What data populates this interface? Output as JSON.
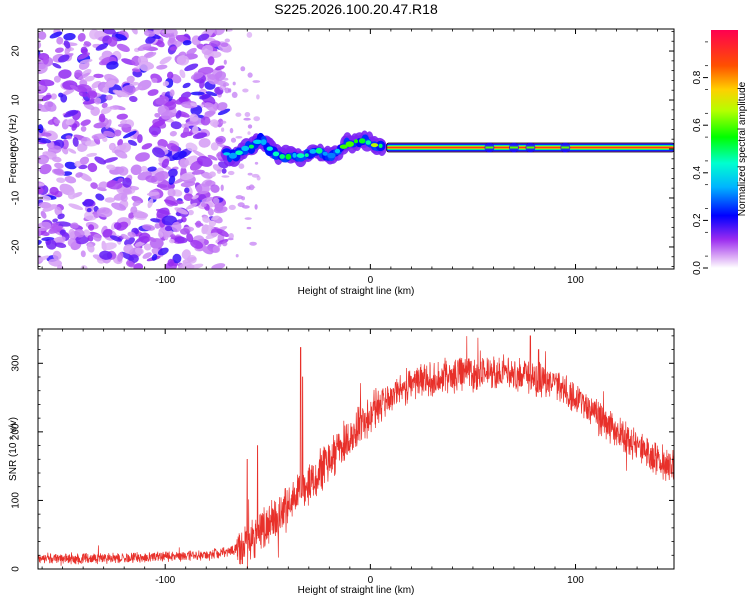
{
  "figure": {
    "title": "S225.2026.100.20.47.R18"
  },
  "chart_data": [
    {
      "type": "heatmap",
      "id": "spectrogram",
      "xlabel": "Height of straight line (km)",
      "ylabel": "Frequency (Hz)",
      "xlim": [
        -162,
        148
      ],
      "ylim": [
        -24.5,
        24.5
      ],
      "xticks": [
        -100,
        0,
        100
      ],
      "xtick_labels": [
        "-100",
        "0",
        "100"
      ],
      "yticks": [
        -20,
        -10,
        0,
        10,
        20
      ],
      "ytick_labels": [
        "-20",
        "-10",
        "0",
        "10",
        "20"
      ],
      "noise_region_x": [
        -162,
        -72
      ],
      "transition_x": [
        -72,
        8
      ],
      "ridge_points": [
        {
          "x": -70,
          "y": -1.0
        },
        {
          "x": -66,
          "y": -1.5
        },
        {
          "x": -62,
          "y": 0.0
        },
        {
          "x": -58,
          "y": 0.5
        },
        {
          "x": -54,
          "y": 1.8
        },
        {
          "x": -51,
          "y": 1.2
        },
        {
          "x": -48,
          "y": -0.5
        },
        {
          "x": -44,
          "y": -1.5
        },
        {
          "x": -40,
          "y": -1.6
        },
        {
          "x": -36,
          "y": -1.2
        },
        {
          "x": -32,
          "y": -1.5
        },
        {
          "x": -28,
          "y": -0.5
        },
        {
          "x": -24,
          "y": -0.3
        },
        {
          "x": -20,
          "y": -1.6
        },
        {
          "x": -17,
          "y": -0.8
        },
        {
          "x": -14,
          "y": 0.3
        },
        {
          "x": -10,
          "y": 1.0
        },
        {
          "x": -6,
          "y": 1.8
        },
        {
          "x": -2,
          "y": 1.5
        },
        {
          "x": 2,
          "y": 0.8
        },
        {
          "x": 6,
          "y": 0.6
        }
      ],
      "steady_line": {
        "x_from": 8,
        "x_to": 148,
        "y": 0.3
      }
    },
    {
      "type": "colorbar",
      "id": "colorbar",
      "label": "Normalized spectral amplitude",
      "range": [
        0,
        1
      ],
      "ticks": [
        0.0,
        0.2,
        0.4,
        0.6,
        0.8
      ],
      "tick_labels": [
        "0.0",
        "0.2",
        "0.4",
        "0.6",
        "0.8"
      ]
    },
    {
      "type": "line",
      "id": "snr",
      "xlabel": "Height of straight line (km)",
      "ylabel": "SNR (10 * v/v)",
      "xlim": [
        -162,
        148
      ],
      "ylim": [
        0,
        350
      ],
      "xticks": [
        -100,
        0,
        100
      ],
      "xtick_labels": [
        "-100",
        "0",
        "100"
      ],
      "yticks": [
        0,
        100,
        200,
        300
      ],
      "ytick_labels": [
        "0",
        "100",
        "200",
        "300"
      ],
      "color": "#e8302a",
      "trend_points": [
        {
          "x": -162,
          "y": 15
        },
        {
          "x": -140,
          "y": 15
        },
        {
          "x": -110,
          "y": 17
        },
        {
          "x": -80,
          "y": 20
        },
        {
          "x": -70,
          "y": 24
        },
        {
          "x": -62,
          "y": 32
        },
        {
          "x": -55,
          "y": 50
        },
        {
          "x": -45,
          "y": 80
        },
        {
          "x": -35,
          "y": 110
        },
        {
          "x": -25,
          "y": 140
        },
        {
          "x": -15,
          "y": 175
        },
        {
          "x": -5,
          "y": 210
        },
        {
          "x": 5,
          "y": 240
        },
        {
          "x": 15,
          "y": 262
        },
        {
          "x": 25,
          "y": 275
        },
        {
          "x": 35,
          "y": 282
        },
        {
          "x": 45,
          "y": 285
        },
        {
          "x": 60,
          "y": 285
        },
        {
          "x": 75,
          "y": 282
        },
        {
          "x": 90,
          "y": 270
        },
        {
          "x": 100,
          "y": 250
        },
        {
          "x": 110,
          "y": 225
        },
        {
          "x": 120,
          "y": 200
        },
        {
          "x": 130,
          "y": 178
        },
        {
          "x": 140,
          "y": 160
        },
        {
          "x": 148,
          "y": 150
        }
      ],
      "spikes": [
        {
          "x": -60,
          "y": 160
        },
        {
          "x": -55,
          "y": 180
        },
        {
          "x": -34,
          "y": 323
        },
        {
          "x": -33,
          "y": 280
        },
        {
          "x": 78,
          "y": 340
        },
        {
          "x": 82,
          "y": 320
        }
      ]
    }
  ]
}
